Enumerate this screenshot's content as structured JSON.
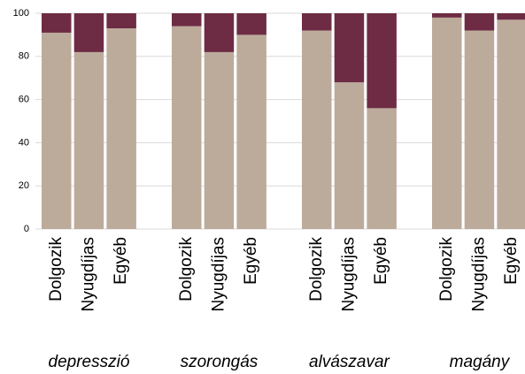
{
  "chart_data": {
    "type": "stacked-bar",
    "groups": [
      "depresszió",
      "szorongás",
      "alvászavar",
      "magány"
    ],
    "categories": [
      "Dolgozik",
      "Nyugdíjas",
      "Egyéb",
      "Dolgozik",
      "Nyugdíjas",
      "Egyéb",
      "Dolgozik",
      "Nyugdíjas",
      "Egyéb",
      "Dolgozik",
      "Nyugdíjas",
      "Egyéb"
    ],
    "series": [
      {
        "color": "#bcab9b",
        "values": [
          91,
          82,
          93,
          94,
          82,
          90,
          92,
          68,
          56,
          98,
          92,
          97
        ]
      },
      {
        "color": "#6e2c44",
        "values": [
          9,
          18,
          7,
          6,
          18,
          10,
          8,
          32,
          44,
          2,
          8,
          3
        ]
      }
    ],
    "ylim": [
      0,
      100
    ],
    "yticks": [
      0,
      20,
      40,
      60,
      80,
      100
    ],
    "grid": true
  }
}
